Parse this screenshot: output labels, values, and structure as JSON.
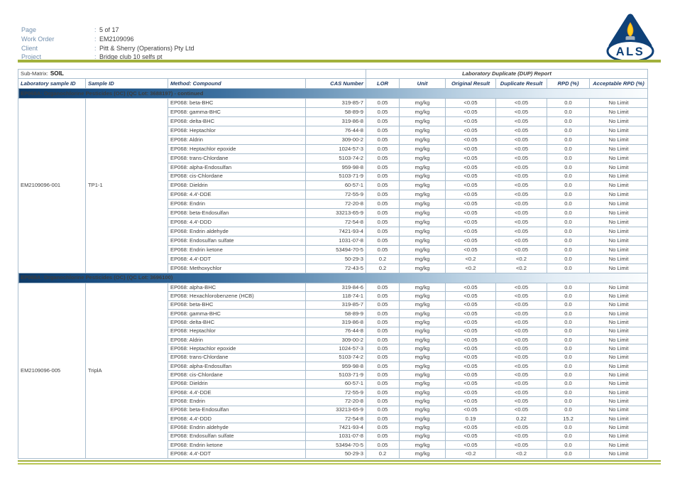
{
  "colors": {
    "green_rule": "#a2b13c",
    "logo_navy": "#0f4178",
    "header_text_navy": "#1f3a63",
    "label_blue": "#7390ae",
    "table_border": "#a9becf",
    "section_bar_start": "#0d3a68",
    "flame_yellow": "#ffcf1f"
  },
  "header": {
    "colon": ":",
    "fields": [
      {
        "label": "Page",
        "value": "5 of 17"
      },
      {
        "label": "Work Order",
        "value": "EM2109096"
      },
      {
        "label": "Client",
        "value": "Pitt & Sherry (Operations) Pty Ltd"
      },
      {
        "label": "Project",
        "value": "Bridge club 10 selfs pt"
      }
    ]
  },
  "logo": {
    "text": "ALS",
    "icon": "als-flame-triangle-logo"
  },
  "sub_matrix": {
    "label": "Sub-Matrix:",
    "value": "SOIL"
  },
  "table": {
    "dup_report_header": "Laboratory Duplicate (DUP) Report",
    "columns": [
      "Laboratory sample ID",
      "Sample ID",
      "Method: Compound",
      "CAS Number",
      "LOR",
      "Unit",
      "Original Result",
      "Duplicate Result",
      "RPD (%)",
      "Acceptable RPD (%)"
    ],
    "sections": [
      {
        "title": "EP068A: Organochlorine Pesticides (OC)  (QC Lot: 3688197)  - continued",
        "lab_sample_id": "EM2109096-001",
        "sample_id": "TP1-1",
        "rows": [
          [
            "EP068: beta-BHC",
            "319-85-7",
            "0.05",
            "mg/kg",
            "<0.05",
            "<0.05",
            "0.0",
            "No Limit"
          ],
          [
            "EP068: gamma-BHC",
            "58-89-9",
            "0.05",
            "mg/kg",
            "<0.05",
            "<0.05",
            "0.0",
            "No Limit"
          ],
          [
            "EP068: delta-BHC",
            "319-86-8",
            "0.05",
            "mg/kg",
            "<0.05",
            "<0.05",
            "0.0",
            "No Limit"
          ],
          [
            "EP068: Heptachlor",
            "76-44-8",
            "0.05",
            "mg/kg",
            "<0.05",
            "<0.05",
            "0.0",
            "No Limit"
          ],
          [
            "EP068: Aldrin",
            "309-00-2",
            "0.05",
            "mg/kg",
            "<0.05",
            "<0.05",
            "0.0",
            "No Limit"
          ],
          [
            "EP068: Heptachlor epoxide",
            "1024-57-3",
            "0.05",
            "mg/kg",
            "<0.05",
            "<0.05",
            "0.0",
            "No Limit"
          ],
          [
            "EP068: trans-Chlordane",
            "5103-74-2",
            "0.05",
            "mg/kg",
            "<0.05",
            "<0.05",
            "0.0",
            "No Limit"
          ],
          [
            "EP068: alpha-Endosulfan",
            "959-98-8",
            "0.05",
            "mg/kg",
            "<0.05",
            "<0.05",
            "0.0",
            "No Limit"
          ],
          [
            "EP068: cis-Chlordane",
            "5103-71-9",
            "0.05",
            "mg/kg",
            "<0.05",
            "<0.05",
            "0.0",
            "No Limit"
          ],
          [
            "EP068: Dieldrin",
            "60-57-1",
            "0.05",
            "mg/kg",
            "<0.05",
            "<0.05",
            "0.0",
            "No Limit"
          ],
          [
            "EP068: 4.4'-DDE",
            "72-55-9",
            "0.05",
            "mg/kg",
            "<0.05",
            "<0.05",
            "0.0",
            "No Limit"
          ],
          [
            "EP068: Endrin",
            "72-20-8",
            "0.05",
            "mg/kg",
            "<0.05",
            "<0.05",
            "0.0",
            "No Limit"
          ],
          [
            "EP068: beta-Endosulfan",
            "33213-65-9",
            "0.05",
            "mg/kg",
            "<0.05",
            "<0.05",
            "0.0",
            "No Limit"
          ],
          [
            "EP068: 4.4'-DDD",
            "72-54-8",
            "0.05",
            "mg/kg",
            "<0.05",
            "<0.05",
            "0.0",
            "No Limit"
          ],
          [
            "EP068: Endrin aldehyde",
            "7421-93-4",
            "0.05",
            "mg/kg",
            "<0.05",
            "<0.05",
            "0.0",
            "No Limit"
          ],
          [
            "EP068: Endosulfan sulfate",
            "1031-07-8",
            "0.05",
            "mg/kg",
            "<0.05",
            "<0.05",
            "0.0",
            "No Limit"
          ],
          [
            "EP068: Endrin ketone",
            "53494-70-5",
            "0.05",
            "mg/kg",
            "<0.05",
            "<0.05",
            "0.0",
            "No Limit"
          ],
          [
            "EP068: 4.4'-DDT",
            "50-29-3",
            "0.2",
            "mg/kg",
            "<0.2",
            "<0.2",
            "0.0",
            "No Limit"
          ],
          [
            "EP068: Methoxychlor",
            "72-43-5",
            "0.2",
            "mg/kg",
            "<0.2",
            "<0.2",
            "0.0",
            "No Limit"
          ]
        ]
      },
      {
        "title": "EP068A: Organochlorine Pesticides (OC)  (QC Lot: 3696100)",
        "lab_sample_id": "EM2109096-005",
        "sample_id": "TriplA",
        "rows": [
          [
            "EP068: alpha-BHC",
            "319-84-6",
            "0.05",
            "mg/kg",
            "<0.05",
            "<0.05",
            "0.0",
            "No Limit"
          ],
          [
            "EP068: Hexachlorobenzene (HCB)",
            "118-74-1",
            "0.05",
            "mg/kg",
            "<0.05",
            "<0.05",
            "0.0",
            "No Limit"
          ],
          [
            "EP068: beta-BHC",
            "319-85-7",
            "0.05",
            "mg/kg",
            "<0.05",
            "<0.05",
            "0.0",
            "No Limit"
          ],
          [
            "EP068: gamma-BHC",
            "58-89-9",
            "0.05",
            "mg/kg",
            "<0.05",
            "<0.05",
            "0.0",
            "No Limit"
          ],
          [
            "EP068: delta-BHC",
            "319-86-8",
            "0.05",
            "mg/kg",
            "<0.05",
            "<0.05",
            "0.0",
            "No Limit"
          ],
          [
            "EP068: Heptachlor",
            "76-44-8",
            "0.05",
            "mg/kg",
            "<0.05",
            "<0.05",
            "0.0",
            "No Limit"
          ],
          [
            "EP068: Aldrin",
            "309-00-2",
            "0.05",
            "mg/kg",
            "<0.05",
            "<0.05",
            "0.0",
            "No Limit"
          ],
          [
            "EP068: Heptachlor epoxide",
            "1024-57-3",
            "0.05",
            "mg/kg",
            "<0.05",
            "<0.05",
            "0.0",
            "No Limit"
          ],
          [
            "EP068: trans-Chlordane",
            "5103-74-2",
            "0.05",
            "mg/kg",
            "<0.05",
            "<0.05",
            "0.0",
            "No Limit"
          ],
          [
            "EP068: alpha-Endosulfan",
            "959-98-8",
            "0.05",
            "mg/kg",
            "<0.05",
            "<0.05",
            "0.0",
            "No Limit"
          ],
          [
            "EP068: cis-Chlordane",
            "5103-71-9",
            "0.05",
            "mg/kg",
            "<0.05",
            "<0.05",
            "0.0",
            "No Limit"
          ],
          [
            "EP068: Dieldrin",
            "60-57-1",
            "0.05",
            "mg/kg",
            "<0.05",
            "<0.05",
            "0.0",
            "No Limit"
          ],
          [
            "EP068: 4.4'-DDE",
            "72-55-9",
            "0.05",
            "mg/kg",
            "<0.05",
            "<0.05",
            "0.0",
            "No Limit"
          ],
          [
            "EP068: Endrin",
            "72-20-8",
            "0.05",
            "mg/kg",
            "<0.05",
            "<0.05",
            "0.0",
            "No Limit"
          ],
          [
            "EP068: beta-Endosulfan",
            "33213-65-9",
            "0.05",
            "mg/kg",
            "<0.05",
            "<0.05",
            "0.0",
            "No Limit"
          ],
          [
            "EP068: 4.4'-DDD",
            "72-54-8",
            "0.05",
            "mg/kg",
            "0.19",
            "0.22",
            "15.2",
            "No Limit"
          ],
          [
            "EP068: Endrin aldehyde",
            "7421-93-4",
            "0.05",
            "mg/kg",
            "<0.05",
            "<0.05",
            "0.0",
            "No Limit"
          ],
          [
            "EP068: Endosulfan sulfate",
            "1031-07-8",
            "0.05",
            "mg/kg",
            "<0.05",
            "<0.05",
            "0.0",
            "No Limit"
          ],
          [
            "EP068: Endrin ketone",
            "53494-70-5",
            "0.05",
            "mg/kg",
            "<0.05",
            "<0.05",
            "0.0",
            "No Limit"
          ],
          [
            "EP068: 4.4'-DDT",
            "50-29-3",
            "0.2",
            "mg/kg",
            "<0.2",
            "<0.2",
            "0.0",
            "No Limit"
          ]
        ]
      }
    ]
  }
}
